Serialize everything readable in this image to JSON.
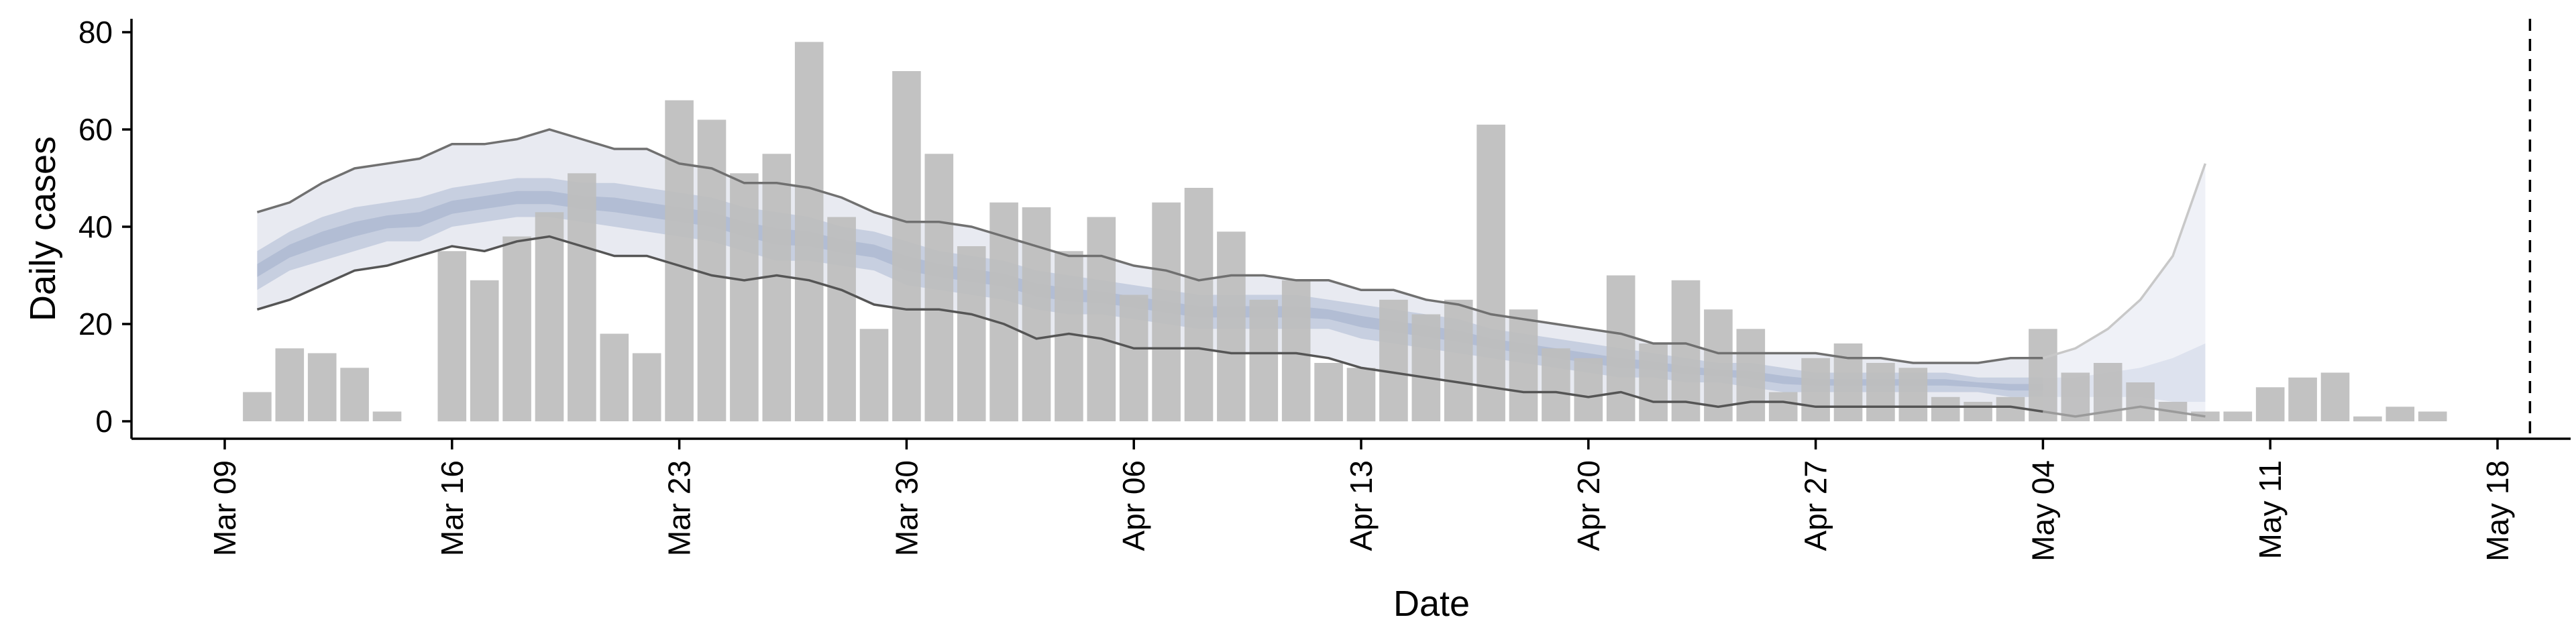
{
  "chart_data": {
    "type": "bar",
    "title": "",
    "xlabel": "Date",
    "ylabel": "Daily cases",
    "ylim": [
      0,
      80
    ],
    "yticks": [
      0,
      20,
      40,
      60,
      80
    ],
    "xlim_dates": [
      "2020-03-09",
      "2020-05-18"
    ],
    "xtick_dates": [
      "2020-03-09",
      "2020-03-16",
      "2020-03-23",
      "2020-03-30",
      "2020-04-06",
      "2020-04-13",
      "2020-04-20",
      "2020-04-27",
      "2020-05-04",
      "2020-05-11",
      "2020-05-18"
    ],
    "xtick_labels": [
      "Mar 09",
      "Mar 16",
      "Mar 23",
      "Mar 30",
      "Apr 06",
      "Apr 13",
      "Apr 20",
      "Apr 27",
      "May 04",
      "May 11",
      "May 18"
    ],
    "grid": false,
    "vline_date": "2020-05-19",
    "colors": {
      "bar": "#bdbdbd",
      "outer_band": "#e8eaf1",
      "inner_band": "#c7cfe0",
      "median": "#a1afcb",
      "bound_line": "#707070",
      "projection_band": "#eff1f7",
      "projection_line": "#c8c8c8"
    },
    "bars": {
      "dates": [
        "2020-03-09",
        "2020-03-10",
        "2020-03-11",
        "2020-03-12",
        "2020-03-13",
        "2020-03-14",
        "2020-03-15",
        "2020-03-16",
        "2020-03-17",
        "2020-03-18",
        "2020-03-19",
        "2020-03-20",
        "2020-03-21",
        "2020-03-22",
        "2020-03-23",
        "2020-03-24",
        "2020-03-25",
        "2020-03-26",
        "2020-03-27",
        "2020-03-28",
        "2020-03-29",
        "2020-03-30",
        "2020-03-31",
        "2020-04-01",
        "2020-04-02",
        "2020-04-03",
        "2020-04-04",
        "2020-04-05",
        "2020-04-06",
        "2020-04-07",
        "2020-04-08",
        "2020-04-09",
        "2020-04-10",
        "2020-04-11",
        "2020-04-12",
        "2020-04-13",
        "2020-04-14",
        "2020-04-15",
        "2020-04-16",
        "2020-04-17",
        "2020-04-18",
        "2020-04-19",
        "2020-04-20",
        "2020-04-21",
        "2020-04-22",
        "2020-04-23",
        "2020-04-24",
        "2020-04-25",
        "2020-04-26",
        "2020-04-27",
        "2020-04-28",
        "2020-04-29",
        "2020-04-30",
        "2020-05-01",
        "2020-05-02",
        "2020-05-03",
        "2020-05-04",
        "2020-05-05",
        "2020-05-06",
        "2020-05-07",
        "2020-05-08",
        "2020-05-09",
        "2020-05-10",
        "2020-05-11",
        "2020-05-12",
        "2020-05-13",
        "2020-05-14",
        "2020-05-15",
        "2020-05-16",
        "2020-05-17"
      ],
      "values": [
        0,
        6,
        15,
        14,
        11,
        2,
        0,
        35,
        29,
        38,
        43,
        51,
        18,
        14,
        66,
        62,
        51,
        55,
        78,
        42,
        19,
        72,
        55,
        36,
        45,
        44,
        35,
        42,
        26,
        45,
        48,
        39,
        25,
        29,
        12,
        11,
        25,
        22,
        25,
        61,
        23,
        15,
        13,
        30,
        16,
        29,
        23,
        19,
        6,
        13,
        16,
        12,
        11,
        5,
        4,
        5,
        19,
        10,
        12,
        8,
        4,
        2,
        2,
        7,
        9,
        10,
        1,
        3,
        2,
        0
      ]
    },
    "estimate": {
      "dates": [
        "2020-03-10",
        "2020-03-11",
        "2020-03-12",
        "2020-03-13",
        "2020-03-14",
        "2020-03-15",
        "2020-03-16",
        "2020-03-17",
        "2020-03-18",
        "2020-03-19",
        "2020-03-20",
        "2020-03-21",
        "2020-03-22",
        "2020-03-23",
        "2020-03-24",
        "2020-03-25",
        "2020-03-26",
        "2020-03-27",
        "2020-03-28",
        "2020-03-29",
        "2020-03-30",
        "2020-03-31",
        "2020-04-01",
        "2020-04-02",
        "2020-04-03",
        "2020-04-04",
        "2020-04-05",
        "2020-04-06",
        "2020-04-07",
        "2020-04-08",
        "2020-04-09",
        "2020-04-10",
        "2020-04-11",
        "2020-04-12",
        "2020-04-13",
        "2020-04-14",
        "2020-04-15",
        "2020-04-16",
        "2020-04-17",
        "2020-04-18",
        "2020-04-19",
        "2020-04-20",
        "2020-04-21",
        "2020-04-22",
        "2020-04-23",
        "2020-04-24",
        "2020-04-25",
        "2020-04-26",
        "2020-04-27",
        "2020-04-28",
        "2020-04-29",
        "2020-04-30",
        "2020-05-01",
        "2020-05-02",
        "2020-05-03",
        "2020-05-04"
      ],
      "upper90": [
        43,
        45,
        49,
        52,
        53,
        54,
        57,
        57,
        58,
        60,
        58,
        56,
        56,
        53,
        52,
        49,
        49,
        48,
        46,
        43,
        41,
        41,
        40,
        38,
        36,
        34,
        34,
        32,
        31,
        29,
        30,
        30,
        29,
        29,
        27,
        27,
        25,
        24,
        22,
        21,
        20,
        19,
        18,
        16,
        16,
        14,
        14,
        14,
        14,
        13,
        13,
        12,
        12,
        12,
        13,
        13
      ],
      "upper50": [
        35,
        39,
        42,
        44,
        45,
        46,
        48,
        49,
        50,
        50,
        49,
        49,
        48,
        47,
        46,
        44,
        43,
        42,
        40,
        39,
        37,
        35,
        34,
        33,
        31,
        30,
        29,
        28,
        27,
        26,
        26,
        26,
        26,
        25,
        24,
        23,
        22,
        21,
        19,
        18,
        17,
        16,
        15,
        14,
        13,
        12,
        12,
        11,
        10,
        10,
        10,
        10,
        10,
        9,
        9,
        9
      ],
      "lower50": [
        27,
        31,
        33,
        35,
        37,
        37,
        40,
        41,
        42,
        42,
        41,
        40,
        39,
        38,
        37,
        35,
        33,
        33,
        32,
        31,
        28,
        27,
        26,
        25,
        23,
        22,
        22,
        21,
        20,
        19,
        19,
        19,
        19,
        19,
        17,
        16,
        15,
        14,
        13,
        12,
        11,
        10,
        9,
        9,
        8,
        8,
        7,
        6,
        6,
        6,
        6,
        6,
        6,
        6,
        5,
        5
      ],
      "lower90": [
        23,
        25,
        28,
        31,
        32,
        34,
        36,
        35,
        37,
        38,
        36,
        34,
        34,
        32,
        30,
        29,
        30,
        29,
        27,
        24,
        23,
        23,
        22,
        20,
        17,
        18,
        17,
        15,
        15,
        15,
        14,
        14,
        14,
        13,
        11,
        10,
        9,
        8,
        7,
        6,
        6,
        5,
        6,
        4,
        4,
        3,
        4,
        4,
        3,
        3,
        3,
        3,
        3,
        3,
        3,
        2
      ]
    },
    "projection": {
      "dates": [
        "2020-05-04",
        "2020-05-05",
        "2020-05-06",
        "2020-05-07",
        "2020-05-08",
        "2020-05-09"
      ],
      "upper90": [
        13,
        15,
        19,
        25,
        34,
        53
      ],
      "upper50": [
        9,
        9,
        10,
        11,
        13,
        16
      ],
      "lower50": [
        5,
        5,
        5,
        5,
        4,
        4
      ],
      "lower90": [
        2,
        1,
        2,
        3,
        2,
        1
      ]
    }
  }
}
